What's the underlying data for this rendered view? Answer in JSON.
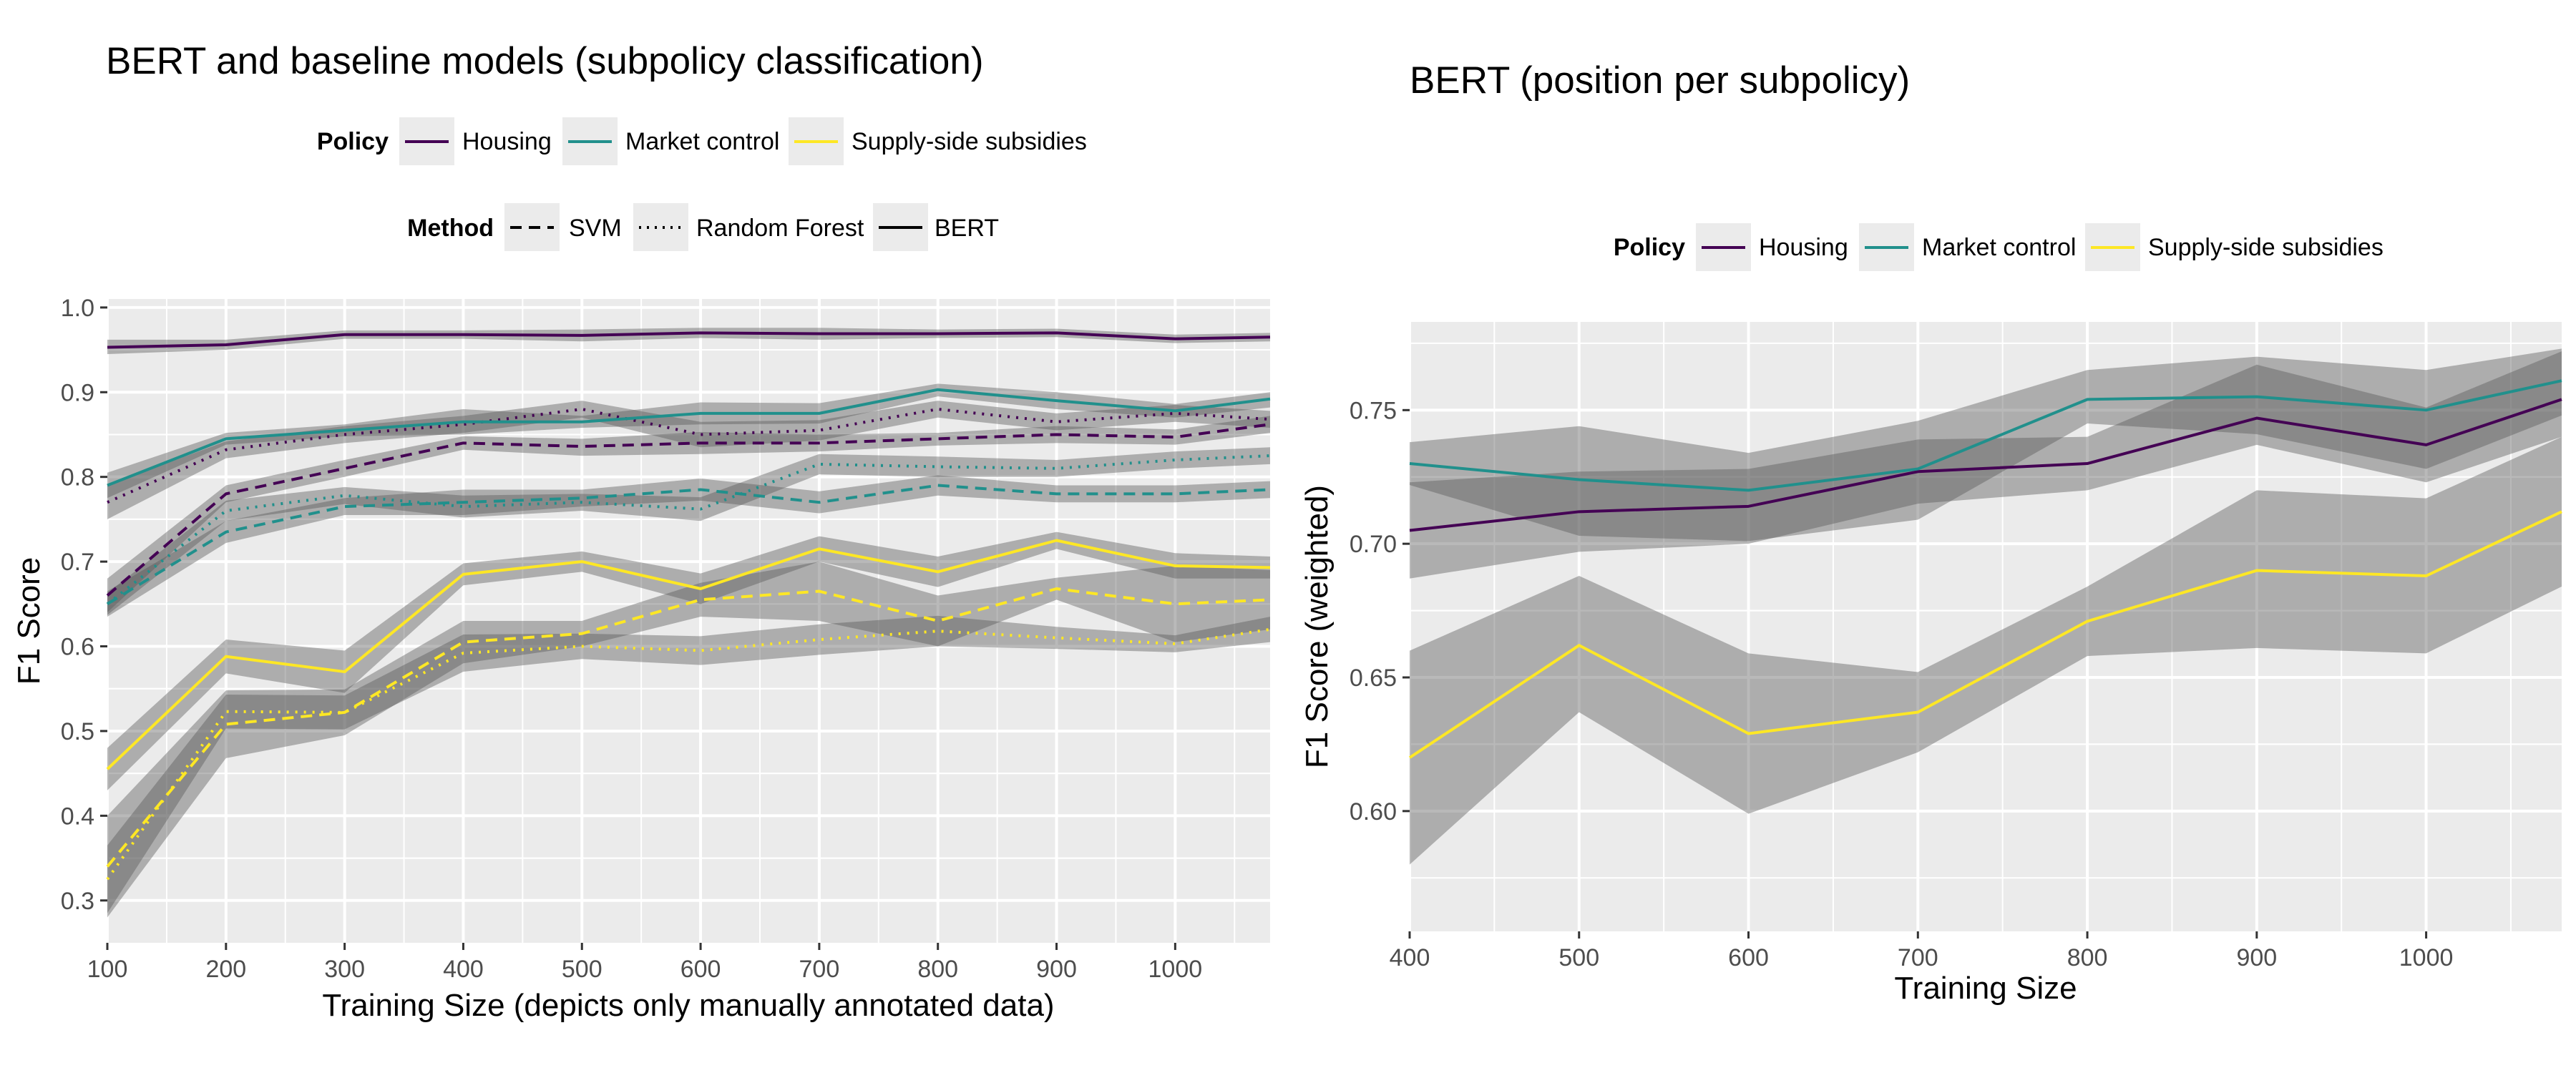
{
  "chart_data": [
    {
      "type": "line",
      "title": "BERT and baseline models (subpolicy classification)",
      "xlabel": "Training Size (depicts only manually annotated data)",
      "ylabel": "F1 Score",
      "xlim": [
        100,
        1080
      ],
      "ylim": [
        0.25,
        1.01
      ],
      "x_ticks": [
        100,
        200,
        300,
        400,
        500,
        600,
        700,
        800,
        900,
        1000
      ],
      "y_ticks": [
        0.3,
        0.4,
        0.5,
        0.6,
        0.7,
        0.8,
        0.9,
        1.0
      ],
      "x_tick_labels": [
        "100",
        "200",
        "300",
        "400",
        "500",
        "600",
        "700",
        "800",
        "900",
        "1000"
      ],
      "y_tick_labels": [
        "0.3",
        "0.4",
        "0.5",
        "0.6",
        "0.7",
        "0.8",
        "0.9",
        "1.0"
      ],
      "grid": true,
      "legend_position": "top",
      "legends": [
        {
          "title": "Policy",
          "entries": [
            {
              "label": "Housing",
              "color": "#440154",
              "dash": "solid"
            },
            {
              "label": "Market control",
              "color": "#21908C",
              "dash": "solid"
            },
            {
              "label": "Supply-side subsidies",
              "color": "#FDE725",
              "dash": "solid"
            }
          ]
        },
        {
          "title": "Method",
          "entries": [
            {
              "label": "SVM",
              "color": "#000000",
              "dash": "dashed"
            },
            {
              "label": "Random Forest",
              "color": "#000000",
              "dash": "dotted"
            },
            {
              "label": "BERT",
              "color": "#000000",
              "dash": "solid"
            }
          ]
        }
      ],
      "x": [
        100,
        200,
        300,
        400,
        500,
        600,
        700,
        800,
        900,
        1000,
        1080
      ],
      "series": [
        {
          "policy": "Housing",
          "method": "BERT",
          "color": "#440154",
          "dash": "solid",
          "values": [
            0.953,
            0.956,
            0.968,
            0.968,
            0.967,
            0.97,
            0.969,
            0.969,
            0.97,
            0.963,
            0.965
          ],
          "lower": [
            0.945,
            0.95,
            0.963,
            0.963,
            0.96,
            0.964,
            0.962,
            0.964,
            0.965,
            0.958,
            0.96
          ],
          "upper": [
            0.962,
            0.962,
            0.973,
            0.973,
            0.974,
            0.976,
            0.976,
            0.974,
            0.975,
            0.968,
            0.97
          ]
        },
        {
          "policy": "Housing",
          "method": "SVM",
          "color": "#440154",
          "dash": "dashed",
          "values": [
            0.66,
            0.78,
            0.81,
            0.84,
            0.836,
            0.84,
            0.84,
            0.845,
            0.85,
            0.847,
            0.862
          ],
          "lower": [
            0.64,
            0.77,
            0.8,
            0.832,
            0.825,
            0.827,
            0.83,
            0.837,
            0.84,
            0.838,
            0.852
          ],
          "upper": [
            0.68,
            0.79,
            0.82,
            0.848,
            0.845,
            0.853,
            0.85,
            0.852,
            0.86,
            0.856,
            0.872
          ]
        },
        {
          "policy": "Housing",
          "method": "Random Forest",
          "color": "#440154",
          "dash": "dotted",
          "values": [
            0.77,
            0.832,
            0.85,
            0.862,
            0.88,
            0.85,
            0.855,
            0.88,
            0.865,
            0.875,
            0.868
          ],
          "lower": [
            0.75,
            0.822,
            0.84,
            0.852,
            0.87,
            0.835,
            0.843,
            0.87,
            0.855,
            0.865,
            0.858
          ],
          "upper": [
            0.79,
            0.842,
            0.86,
            0.872,
            0.89,
            0.865,
            0.867,
            0.89,
            0.875,
            0.885,
            0.878
          ]
        },
        {
          "policy": "Market control",
          "method": "BERT",
          "color": "#21908C",
          "dash": "solid",
          "values": [
            0.79,
            0.845,
            0.855,
            0.865,
            0.865,
            0.875,
            0.875,
            0.903,
            0.89,
            0.878,
            0.892
          ],
          "lower": [
            0.775,
            0.838,
            0.848,
            0.85,
            0.858,
            0.862,
            0.863,
            0.895,
            0.88,
            0.87,
            0.882
          ],
          "upper": [
            0.805,
            0.852,
            0.862,
            0.88,
            0.872,
            0.888,
            0.887,
            0.91,
            0.9,
            0.886,
            0.9
          ]
        },
        {
          "policy": "Market control",
          "method": "SVM",
          "color": "#21908C",
          "dash": "dashed",
          "values": [
            0.65,
            0.735,
            0.765,
            0.77,
            0.775,
            0.785,
            0.77,
            0.79,
            0.78,
            0.78,
            0.785
          ],
          "lower": [
            0.635,
            0.722,
            0.755,
            0.755,
            0.765,
            0.772,
            0.757,
            0.778,
            0.77,
            0.77,
            0.775
          ],
          "upper": [
            0.665,
            0.748,
            0.775,
            0.785,
            0.785,
            0.798,
            0.783,
            0.802,
            0.79,
            0.79,
            0.795
          ]
        },
        {
          "policy": "Market control",
          "method": "Random Forest",
          "color": "#21908C",
          "dash": "dotted",
          "values": [
            0.65,
            0.76,
            0.778,
            0.765,
            0.77,
            0.762,
            0.815,
            0.812,
            0.81,
            0.82,
            0.825
          ],
          "lower": [
            0.637,
            0.748,
            0.768,
            0.752,
            0.76,
            0.748,
            0.803,
            0.8,
            0.8,
            0.81,
            0.815
          ],
          "upper": [
            0.663,
            0.772,
            0.788,
            0.778,
            0.78,
            0.776,
            0.827,
            0.824,
            0.82,
            0.83,
            0.835
          ]
        },
        {
          "policy": "Supply-side subsidies",
          "method": "BERT",
          "color": "#FDE725",
          "dash": "solid",
          "values": [
            0.455,
            0.588,
            0.57,
            0.685,
            0.7,
            0.668,
            0.715,
            0.688,
            0.725,
            0.695,
            0.693
          ],
          "lower": [
            0.43,
            0.568,
            0.545,
            0.672,
            0.688,
            0.65,
            0.7,
            0.67,
            0.715,
            0.68,
            0.68
          ],
          "upper": [
            0.48,
            0.608,
            0.595,
            0.698,
            0.712,
            0.686,
            0.73,
            0.706,
            0.735,
            0.71,
            0.706
          ]
        },
        {
          "policy": "Supply-side subsidies",
          "method": "SVM",
          "color": "#FDE725",
          "dash": "dashed",
          "values": [
            0.34,
            0.508,
            0.522,
            0.605,
            0.615,
            0.655,
            0.665,
            0.63,
            0.668,
            0.65,
            0.655
          ],
          "lower": [
            0.28,
            0.468,
            0.495,
            0.58,
            0.6,
            0.635,
            0.63,
            0.6,
            0.655,
            0.605,
            0.62
          ],
          "upper": [
            0.4,
            0.548,
            0.549,
            0.63,
            0.63,
            0.675,
            0.7,
            0.66,
            0.681,
            0.695,
            0.69
          ]
        },
        {
          "policy": "Supply-side subsidies",
          "method": "Random Forest",
          "color": "#FDE725",
          "dash": "dotted",
          "values": [
            0.325,
            0.523,
            0.522,
            0.592,
            0.6,
            0.595,
            0.608,
            0.618,
            0.61,
            0.603,
            0.62
          ],
          "lower": [
            0.285,
            0.503,
            0.502,
            0.57,
            0.585,
            0.578,
            0.59,
            0.6,
            0.597,
            0.593,
            0.605
          ],
          "upper": [
            0.365,
            0.543,
            0.542,
            0.614,
            0.615,
            0.612,
            0.626,
            0.636,
            0.623,
            0.613,
            0.635
          ]
        }
      ]
    },
    {
      "type": "line",
      "title": "BERT (position per subpolicy)",
      "xlabel": "Training Size",
      "ylabel": "F1 Score (weighted)",
      "xlim": [
        400,
        1080
      ],
      "ylim": [
        0.555,
        0.783
      ],
      "x_ticks": [
        400,
        500,
        600,
        700,
        800,
        900,
        1000
      ],
      "y_ticks": [
        0.6,
        0.65,
        0.7,
        0.75
      ],
      "x_tick_labels": [
        "400",
        "500",
        "600",
        "700",
        "800",
        "900",
        "1000"
      ],
      "y_tick_labels": [
        "0.60",
        "0.65",
        "0.70",
        "0.75"
      ],
      "grid": true,
      "legend_position": "top",
      "legends": [
        {
          "title": "Policy",
          "entries": [
            {
              "label": "Housing",
              "color": "#440154",
              "dash": "solid"
            },
            {
              "label": "Market control",
              "color": "#21908C",
              "dash": "solid"
            },
            {
              "label": "Supply-side subsidies",
              "color": "#FDE725",
              "dash": "solid"
            }
          ]
        }
      ],
      "x": [
        400,
        500,
        600,
        700,
        800,
        900,
        1000,
        1080
      ],
      "series": [
        {
          "policy": "Housing",
          "color": "#440154",
          "dash": "solid",
          "values": [
            0.705,
            0.712,
            0.714,
            0.727,
            0.73,
            0.747,
            0.737,
            0.754
          ],
          "lower": [
            0.687,
            0.697,
            0.7,
            0.715,
            0.72,
            0.737,
            0.723,
            0.74
          ],
          "upper": [
            0.723,
            0.727,
            0.728,
            0.739,
            0.74,
            0.767,
            0.751,
            0.772
          ]
        },
        {
          "policy": "Market control",
          "color": "#21908C",
          "dash": "solid",
          "values": [
            0.73,
            0.724,
            0.72,
            0.728,
            0.754,
            0.755,
            0.75,
            0.761
          ],
          "lower": [
            0.722,
            0.703,
            0.701,
            0.709,
            0.745,
            0.741,
            0.728,
            0.748
          ],
          "upper": [
            0.738,
            0.744,
            0.734,
            0.746,
            0.765,
            0.77,
            0.765,
            0.773
          ]
        },
        {
          "policy": "Supply-side subsidies",
          "color": "#FDE725",
          "dash": "solid",
          "values": [
            0.62,
            0.662,
            0.629,
            0.637,
            0.671,
            0.69,
            0.688,
            0.712
          ],
          "lower": [
            0.58,
            0.637,
            0.599,
            0.622,
            0.658,
            0.661,
            0.659,
            0.684
          ],
          "upper": [
            0.66,
            0.688,
            0.659,
            0.652,
            0.684,
            0.72,
            0.717,
            0.74
          ]
        }
      ]
    }
  ]
}
